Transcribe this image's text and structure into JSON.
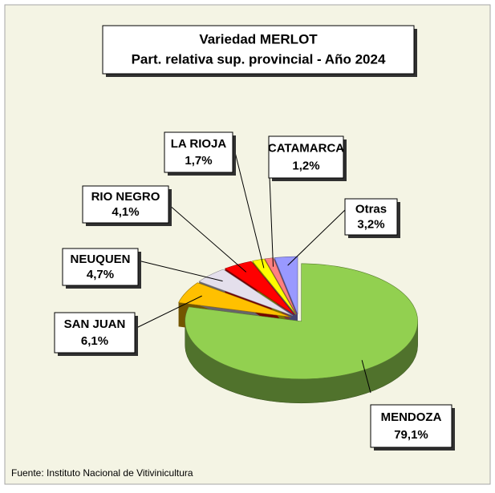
{
  "chart_data": {
    "type": "pie3d",
    "title": "Variedad MERLOT",
    "subtitle": "Part. relativa sup. provincial - Año 2024",
    "source": "Fuente: Instituto Nacional de Vitivinicultura",
    "categories": [
      "MENDOZA",
      "SAN JUAN",
      "NEUQUEN",
      "RIO NEGRO",
      "LA RIOJA",
      "CATAMARCA",
      "Otras"
    ],
    "values": [
      79.1,
      6.1,
      4.7,
      4.1,
      1.7,
      1.2,
      3.2
    ],
    "value_labels": [
      "79,1%",
      "6,1%",
      "4,7%",
      "4,1%",
      "1,7%",
      "1,2%",
      "3,2%"
    ],
    "colors": [
      "#92d050",
      "#ffc000",
      "#e4dfec",
      "#ff0000",
      "#ffff00",
      "#ff8080",
      "#9999ff"
    ]
  }
}
